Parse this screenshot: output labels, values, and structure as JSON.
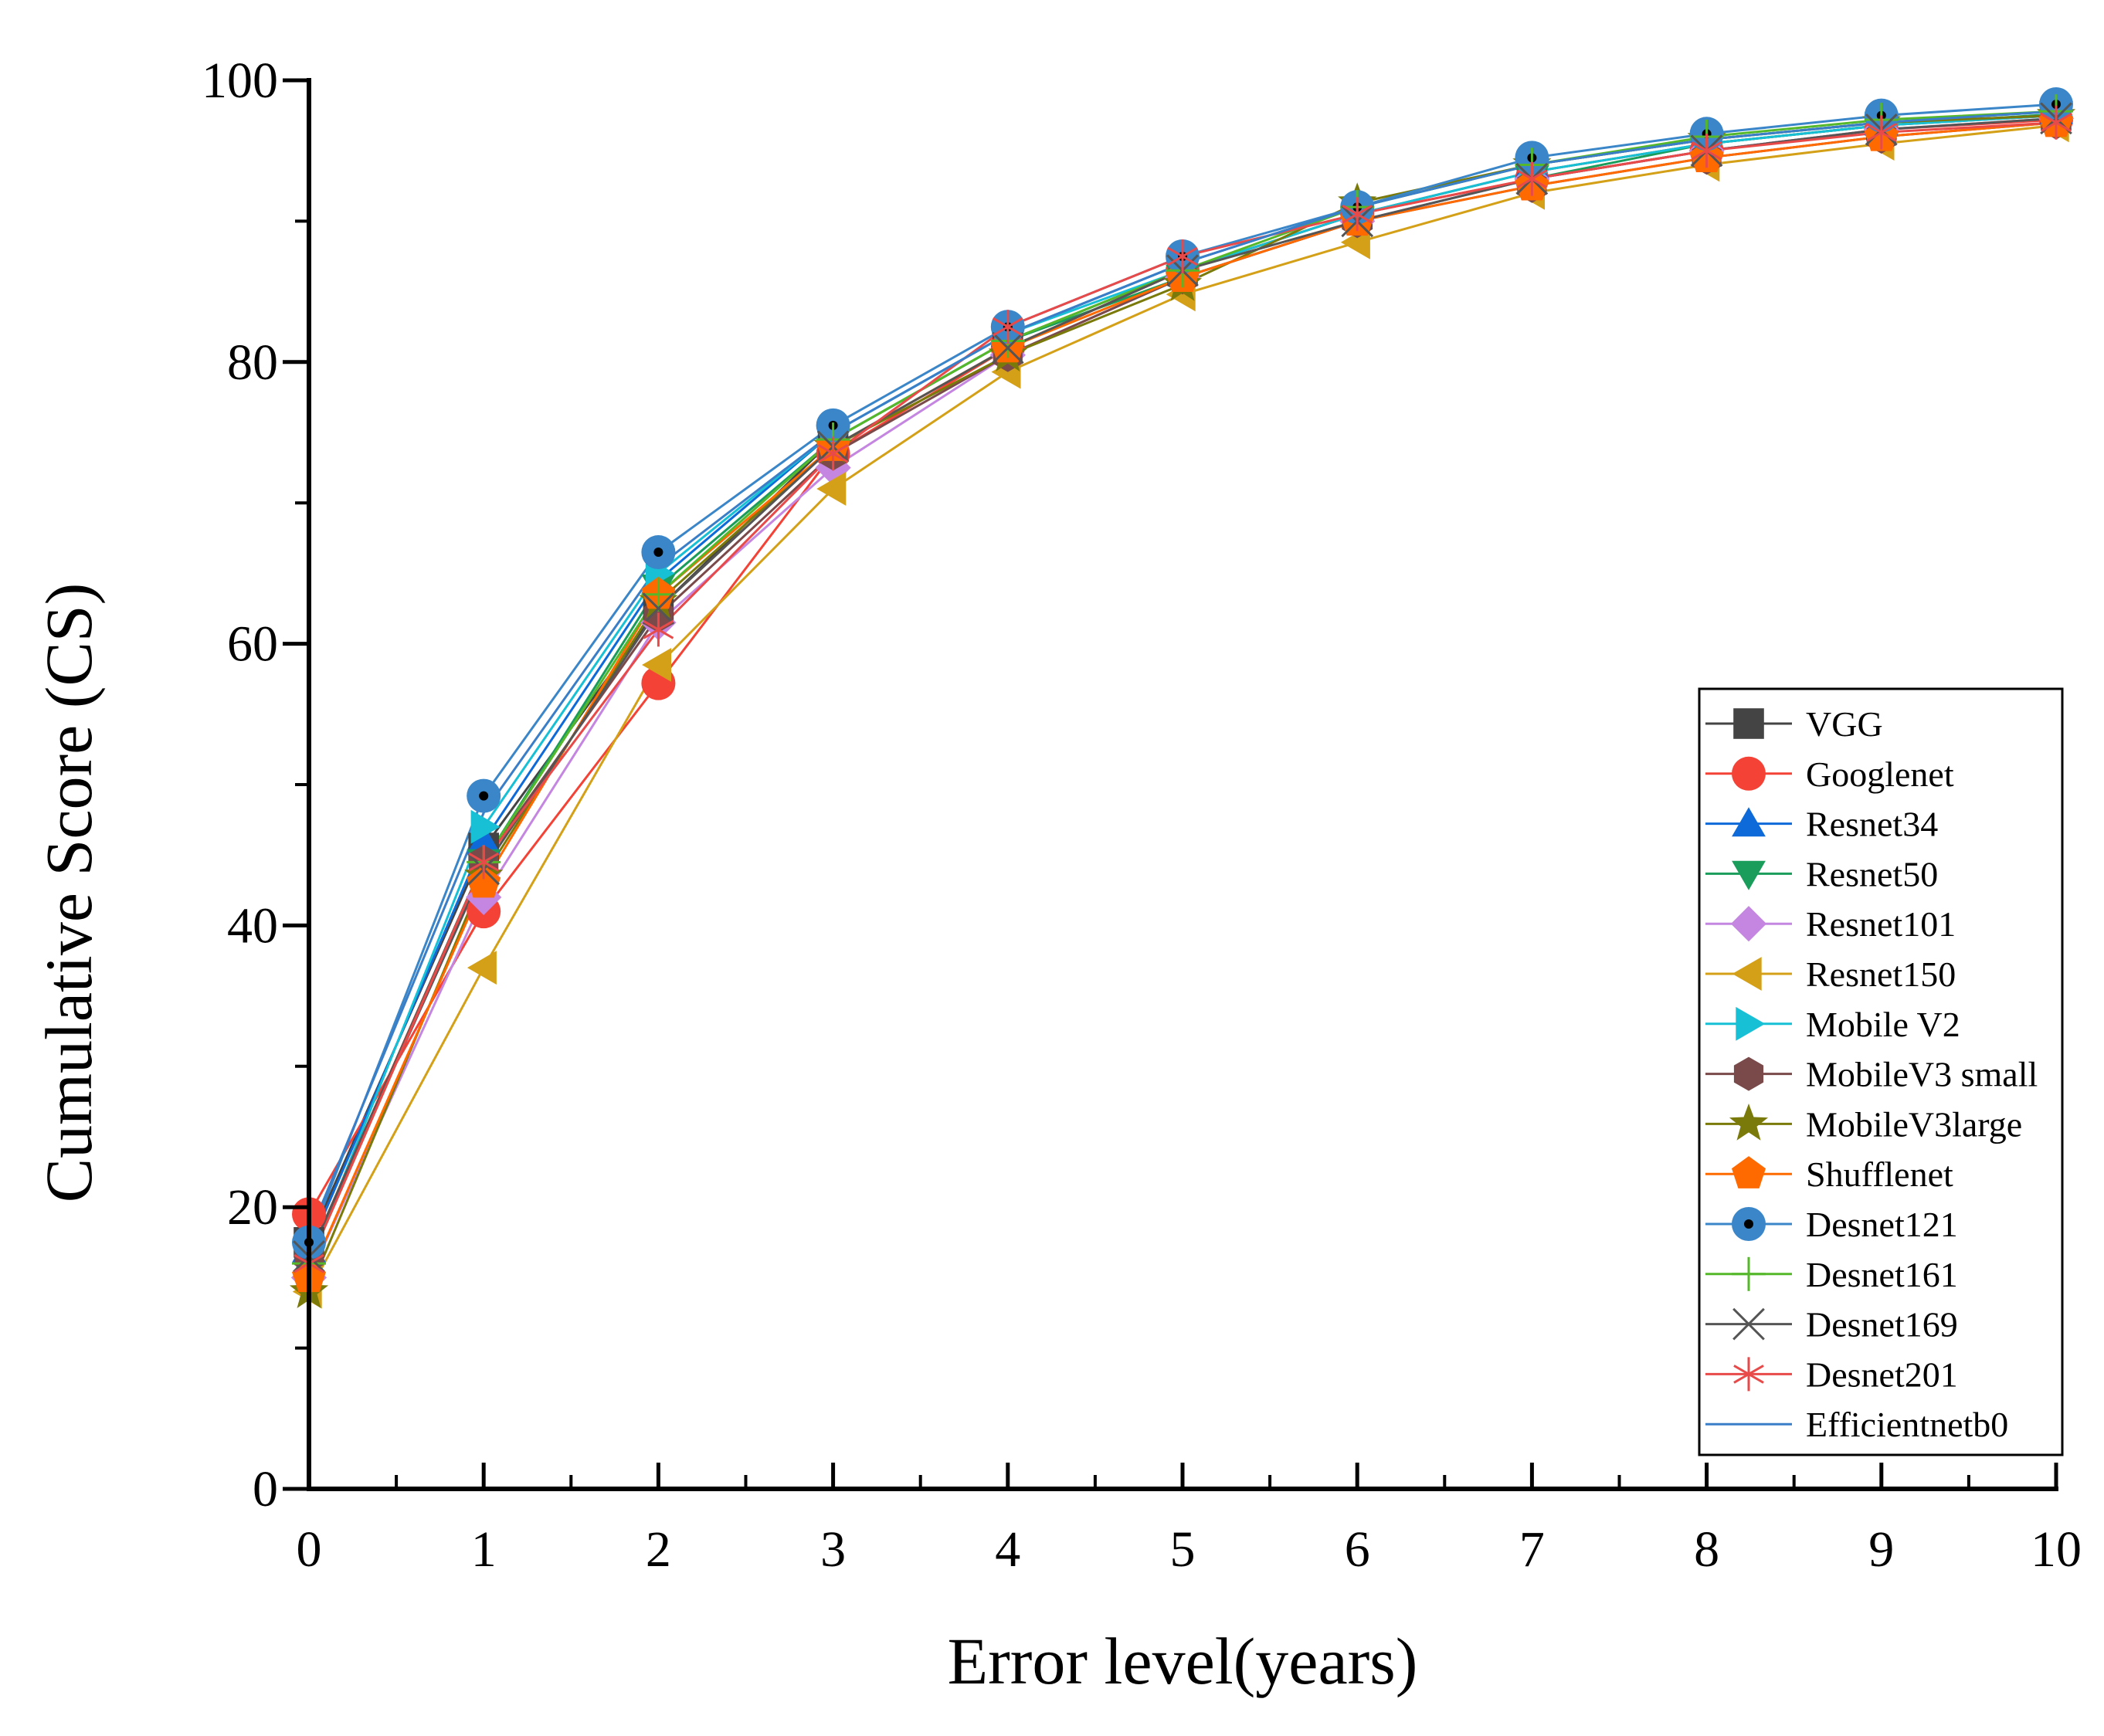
{
  "chart_data": {
    "type": "line",
    "title": "",
    "xlabel": "Error level(years)",
    "ylabel": "Cumulative Score (CS)",
    "xlim": [
      0,
      10
    ],
    "ylim": [
      0,
      100
    ],
    "x_ticks": [
      "0",
      "1",
      "2",
      "3",
      "4",
      "5",
      "6",
      "7",
      "8",
      "9",
      "10"
    ],
    "y_ticks": [
      "0",
      "20",
      "40",
      "60",
      "80",
      "100"
    ],
    "legend_position": "bottom-right",
    "grid": false,
    "x": [
      0,
      1,
      2,
      3,
      4,
      5,
      6,
      7,
      8,
      9,
      10
    ],
    "series": [
      {
        "name": "VGG",
        "marker": "square",
        "color": "#444444",
        "values": [
          17.5,
          45.5,
          62.5,
          74.5,
          81.5,
          86.5,
          90.5,
          93.5,
          95.5,
          96.8,
          97.5
        ]
      },
      {
        "name": "Googlenet",
        "marker": "circle",
        "color": "#f44336",
        "values": [
          19.5,
          41.0,
          57.2,
          73.5,
          81.0,
          86.5,
          90.5,
          93.0,
          95.0,
          96.5,
          97.2
        ]
      },
      {
        "name": "Resnet34",
        "marker": "triangle-up",
        "color": "#0d6ad8",
        "values": [
          17.0,
          46.0,
          64.5,
          75.0,
          82.0,
          87.0,
          91.0,
          94.0,
          95.8,
          97.0,
          97.8
        ]
      },
      {
        "name": "Resnet50",
        "marker": "triangle-down",
        "color": "#1a9c5b",
        "values": [
          16.5,
          44.5,
          64.0,
          74.5,
          81.5,
          86.0,
          90.0,
          93.0,
          95.5,
          96.8,
          97.6
        ]
      },
      {
        "name": "Resnet101",
        "marker": "diamond",
        "color": "#c486e0",
        "values": [
          15.0,
          42.0,
          61.5,
          72.5,
          80.5,
          86.0,
          90.0,
          93.0,
          95.0,
          96.5,
          97.3
        ]
      },
      {
        "name": "Resnet150",
        "marker": "triangle-left",
        "color": "#d4a017",
        "values": [
          14.0,
          37.0,
          58.5,
          71.0,
          79.3,
          84.8,
          88.5,
          92.0,
          94.0,
          95.5,
          96.8
        ]
      },
      {
        "name": "Mobile V2",
        "marker": "triangle-right",
        "color": "#17c0d4",
        "values": [
          16.0,
          47.0,
          65.0,
          75.0,
          82.0,
          86.5,
          90.5,
          93.5,
          95.5,
          96.8,
          97.5
        ]
      },
      {
        "name": "MobileV3 small",
        "marker": "hexagon",
        "color": "#7a4a4a",
        "values": [
          16.5,
          44.5,
          62.0,
          73.5,
          80.5,
          86.0,
          90.0,
          92.5,
          94.5,
          96.0,
          97.0
        ]
      },
      {
        "name": "MobileV3large",
        "marker": "star",
        "color": "#7a7a0a",
        "values": [
          14.0,
          43.5,
          63.0,
          74.0,
          80.5,
          85.5,
          91.3,
          94.0,
          95.8,
          97.0,
          97.5
        ]
      },
      {
        "name": "Shufflenet",
        "marker": "pentagon",
        "color": "#ff6a00",
        "values": [
          15.0,
          43.0,
          63.5,
          74.0,
          81.0,
          86.0,
          90.0,
          92.5,
          94.5,
          96.0,
          97.0
        ]
      },
      {
        "name": "Desnet121",
        "marker": "circle-dot",
        "color": "#3a86c8",
        "values": [
          17.5,
          49.2,
          66.5,
          75.5,
          82.5,
          87.5,
          91.0,
          94.5,
          96.2,
          97.5,
          98.3
        ]
      },
      {
        "name": "Desnet161",
        "marker": "plus",
        "color": "#55b82a",
        "values": [
          16.0,
          44.5,
          63.5,
          74.5,
          81.5,
          86.5,
          91.0,
          94.0,
          96.0,
          97.2,
          97.8
        ]
      },
      {
        "name": "Desnet169",
        "marker": "x",
        "color": "#555555",
        "values": [
          16.5,
          44.0,
          62.5,
          74.0,
          81.0,
          86.5,
          90.0,
          93.0,
          95.0,
          96.5,
          97.3
        ]
      },
      {
        "name": "Desnet201",
        "marker": "asterisk",
        "color": "#e84a4a",
        "values": [
          16.0,
          44.5,
          61.0,
          73.5,
          82.5,
          87.5,
          90.5,
          93.0,
          95.0,
          96.3,
          97.0
        ]
      },
      {
        "name": "Efficientnetb0",
        "marker": "none",
        "color": "#3a7ec8",
        "values": [
          18.0,
          48.0,
          65.5,
          75.0,
          82.0,
          87.0,
          91.0,
          94.0,
          95.8,
          97.0,
          97.8
        ]
      }
    ]
  }
}
